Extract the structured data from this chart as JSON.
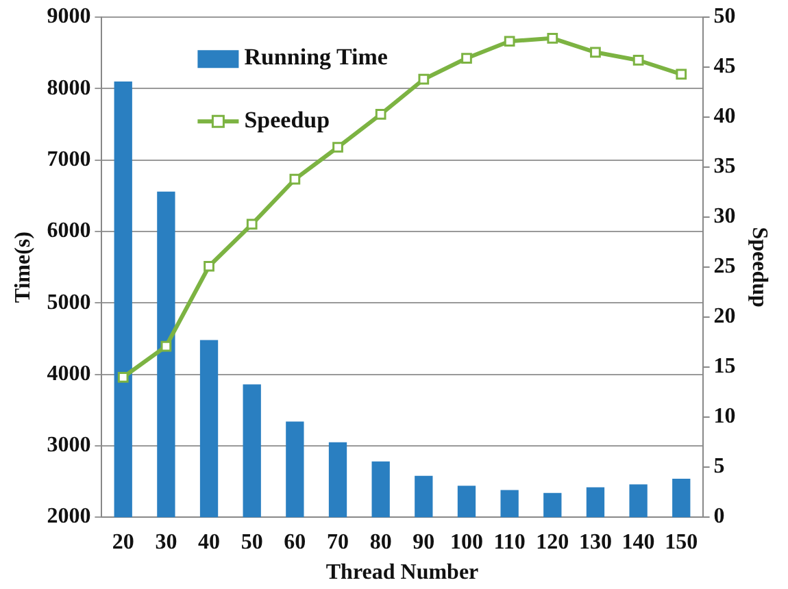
{
  "chart_data": {
    "type": "bar",
    "xlabel": "Thread Number",
    "ylabel": "Time(s)",
    "y2label": "Speedup",
    "categories": [
      "20",
      "30",
      "40",
      "50",
      "60",
      "70",
      "80",
      "90",
      "100",
      "110",
      "120",
      "130",
      "140",
      "150"
    ],
    "series": [
      {
        "name": "Running Time",
        "color": "#2a7fc1",
        "values": [
          8100,
          6560,
          4480,
          3860,
          3340,
          3050,
          2780,
          2580,
          2440,
          2380,
          2340,
          2420,
          2460,
          2540
        ]
      },
      {
        "name": "Speedup",
        "type": "line",
        "axis": "y2",
        "color": "#7cb342",
        "marker": "square",
        "values": [
          14.0,
          17.1,
          25.1,
          29.3,
          33.8,
          37.0,
          40.3,
          43.8,
          45.9,
          47.6,
          47.9,
          46.5,
          45.7,
          44.3
        ]
      }
    ],
    "ylim": [
      2000,
      9000
    ],
    "yticks": [
      2000,
      3000,
      4000,
      5000,
      6000,
      7000,
      8000,
      9000
    ],
    "y2lim": [
      0,
      50
    ],
    "y2ticks": [
      0,
      5,
      10,
      15,
      20,
      25,
      30,
      35,
      40,
      45,
      50
    ],
    "grid": "y",
    "legend": "top left"
  }
}
